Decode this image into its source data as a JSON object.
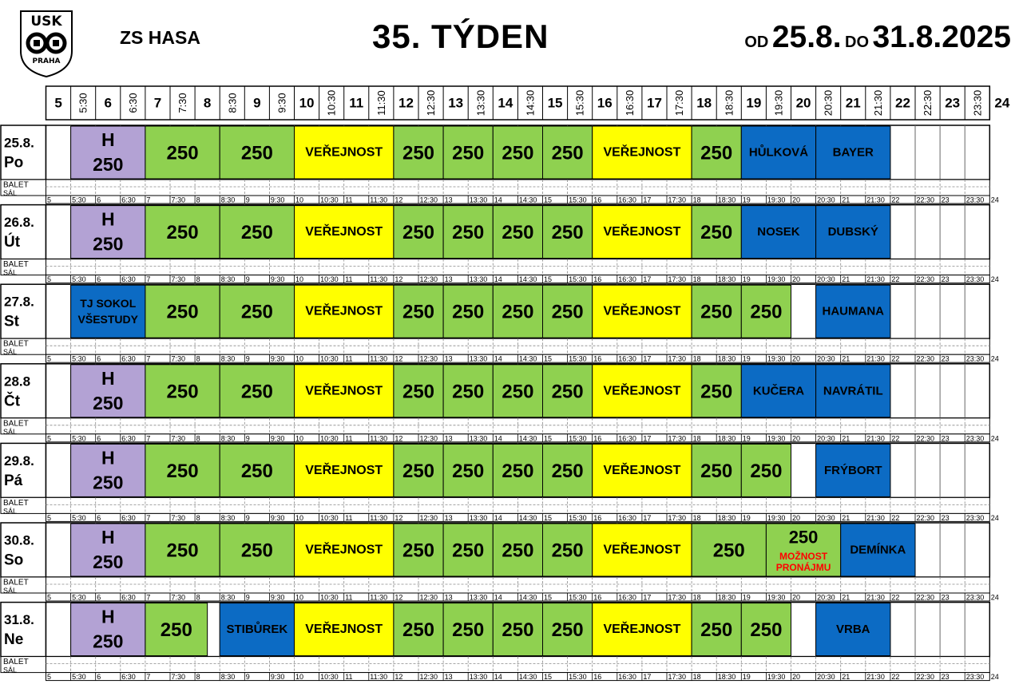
{
  "header": {
    "logo_text_top": "USK",
    "logo_text_bottom": "PRAHA",
    "venue": "ZS HASA",
    "week": "35. TÝDEN",
    "from_label": "OD",
    "from_date": "25.8.",
    "to_label": "DO",
    "to_date": "31.8.2025"
  },
  "hour_labels": [
    "5",
    "5:30",
    "6",
    "6:30",
    "7",
    "7:30",
    "8",
    "8:30",
    "9",
    "9:30",
    "10",
    "10:30",
    "11",
    "11:30",
    "12",
    "12:30",
    "13",
    "13:30",
    "14",
    "14:30",
    "15",
    "15:30",
    "16",
    "16:30",
    "17",
    "17:30",
    "18",
    "18:30",
    "19",
    "19:30",
    "20",
    "20:30",
    "21",
    "21:30",
    "22",
    "22:30",
    "23",
    "23:30",
    "24"
  ],
  "sub_label": [
    "BALET",
    "SÁL"
  ],
  "colors": {
    "purple": "#b3a2d4",
    "green": "#8fd150",
    "yellow": "#ffff00",
    "blue": "#0c6bc4",
    "red": "#ff0000",
    "grid": "#666666"
  },
  "days": [
    {
      "date": "25.8.",
      "dow": "Po",
      "blocks": [
        {
          "start": 1,
          "end": 4,
          "color": "purple",
          "text": "H",
          "text2": "250",
          "style": "h"
        },
        {
          "start": 4,
          "end": 7,
          "color": "green",
          "text": "250",
          "style": "big"
        },
        {
          "start": 7,
          "end": 10,
          "color": "green",
          "text": "250",
          "style": "big"
        },
        {
          "start": 10,
          "end": 14,
          "color": "yellow",
          "text": "VEŘEJNOST",
          "style": "med"
        },
        {
          "start": 14,
          "end": 16,
          "color": "green",
          "text": "250",
          "style": "big"
        },
        {
          "start": 16,
          "end": 18,
          "color": "green",
          "text": "250",
          "style": "big"
        },
        {
          "start": 18,
          "end": 20,
          "color": "green",
          "text": "250",
          "style": "big"
        },
        {
          "start": 20,
          "end": 22,
          "color": "green",
          "text": "250",
          "style": "big"
        },
        {
          "start": 22,
          "end": 26,
          "color": "yellow",
          "text": "VEŘEJNOST",
          "style": "med"
        },
        {
          "start": 26,
          "end": 28,
          "color": "green",
          "text": "250",
          "style": "big"
        },
        {
          "start": 28,
          "end": 31,
          "color": "blue",
          "text": "HŮLKOVÁ",
          "style": "name"
        },
        {
          "start": 31,
          "end": 34,
          "color": "blue",
          "text": "BAYER",
          "style": "name"
        }
      ]
    },
    {
      "date": "26.8.",
      "dow": "Út",
      "blocks": [
        {
          "start": 1,
          "end": 4,
          "color": "purple",
          "text": "H",
          "text2": "250",
          "style": "h"
        },
        {
          "start": 4,
          "end": 7,
          "color": "green",
          "text": "250",
          "style": "big"
        },
        {
          "start": 7,
          "end": 10,
          "color": "green",
          "text": "250",
          "style": "big"
        },
        {
          "start": 10,
          "end": 14,
          "color": "yellow",
          "text": "VEŘEJNOST",
          "style": "med"
        },
        {
          "start": 14,
          "end": 16,
          "color": "green",
          "text": "250",
          "style": "big"
        },
        {
          "start": 16,
          "end": 18,
          "color": "green",
          "text": "250",
          "style": "big"
        },
        {
          "start": 18,
          "end": 20,
          "color": "green",
          "text": "250",
          "style": "big"
        },
        {
          "start": 20,
          "end": 22,
          "color": "green",
          "text": "250",
          "style": "big"
        },
        {
          "start": 22,
          "end": 26,
          "color": "yellow",
          "text": "VEŘEJNOST",
          "style": "med"
        },
        {
          "start": 26,
          "end": 28,
          "color": "green",
          "text": "250",
          "style": "big"
        },
        {
          "start": 28,
          "end": 31,
          "color": "blue",
          "text": "NOSEK",
          "style": "name"
        },
        {
          "start": 31,
          "end": 34,
          "color": "blue",
          "text": "DUBSKÝ",
          "style": "name"
        }
      ]
    },
    {
      "date": "27.8.",
      "dow": "St",
      "blocks": [
        {
          "start": 1,
          "end": 4,
          "color": "blue",
          "text": "TJ SOKOL",
          "text2": "VŠESTUDY",
          "style": "two"
        },
        {
          "start": 4,
          "end": 7,
          "color": "green",
          "text": "250",
          "style": "big"
        },
        {
          "start": 7,
          "end": 10,
          "color": "green",
          "text": "250",
          "style": "big"
        },
        {
          "start": 10,
          "end": 14,
          "color": "yellow",
          "text": "VEŘEJNOST",
          "style": "med"
        },
        {
          "start": 14,
          "end": 16,
          "color": "green",
          "text": "250",
          "style": "big"
        },
        {
          "start": 16,
          "end": 18,
          "color": "green",
          "text": "250",
          "style": "big"
        },
        {
          "start": 18,
          "end": 20,
          "color": "green",
          "text": "250",
          "style": "big"
        },
        {
          "start": 20,
          "end": 22,
          "color": "green",
          "text": "250",
          "style": "big"
        },
        {
          "start": 22,
          "end": 26,
          "color": "yellow",
          "text": "VEŘEJNOST",
          "style": "med"
        },
        {
          "start": 26,
          "end": 28,
          "color": "green",
          "text": "250",
          "style": "big"
        },
        {
          "start": 28,
          "end": 30,
          "color": "green",
          "text": "250",
          "style": "big"
        },
        {
          "start": 31,
          "end": 34,
          "color": "blue",
          "text": "HAUMANA",
          "style": "name"
        }
      ]
    },
    {
      "date": "28.8",
      "dow": "Čt",
      "blocks": [
        {
          "start": 1,
          "end": 4,
          "color": "purple",
          "text": "H",
          "text2": "250",
          "style": "h"
        },
        {
          "start": 4,
          "end": 7,
          "color": "green",
          "text": "250",
          "style": "big"
        },
        {
          "start": 7,
          "end": 10,
          "color": "green",
          "text": "250",
          "style": "big"
        },
        {
          "start": 10,
          "end": 14,
          "color": "yellow",
          "text": "VEŘEJNOST",
          "style": "med"
        },
        {
          "start": 14,
          "end": 16,
          "color": "green",
          "text": "250",
          "style": "big"
        },
        {
          "start": 16,
          "end": 18,
          "color": "green",
          "text": "250",
          "style": "big"
        },
        {
          "start": 18,
          "end": 20,
          "color": "green",
          "text": "250",
          "style": "big"
        },
        {
          "start": 20,
          "end": 22,
          "color": "green",
          "text": "250",
          "style": "big"
        },
        {
          "start": 22,
          "end": 26,
          "color": "yellow",
          "text": "VEŘEJNOST",
          "style": "med"
        },
        {
          "start": 26,
          "end": 28,
          "color": "green",
          "text": "250",
          "style": "big"
        },
        {
          "start": 28,
          "end": 31,
          "color": "blue",
          "text": "KUČERA",
          "style": "name"
        },
        {
          "start": 31,
          "end": 34,
          "color": "blue",
          "text": "NAVRÁTIL",
          "style": "name"
        }
      ]
    },
    {
      "date": "29.8.",
      "dow": "Pá",
      "blocks": [
        {
          "start": 1,
          "end": 4,
          "color": "purple",
          "text": "H",
          "text2": "250",
          "style": "h"
        },
        {
          "start": 4,
          "end": 7,
          "color": "green",
          "text": "250",
          "style": "big"
        },
        {
          "start": 7,
          "end": 10,
          "color": "green",
          "text": "250",
          "style": "big"
        },
        {
          "start": 10,
          "end": 14,
          "color": "yellow",
          "text": "VEŘEJNOST",
          "style": "med"
        },
        {
          "start": 14,
          "end": 16,
          "color": "green",
          "text": "250",
          "style": "big"
        },
        {
          "start": 16,
          "end": 18,
          "color": "green",
          "text": "250",
          "style": "big"
        },
        {
          "start": 18,
          "end": 20,
          "color": "green",
          "text": "250",
          "style": "big"
        },
        {
          "start": 20,
          "end": 22,
          "color": "green",
          "text": "250",
          "style": "big"
        },
        {
          "start": 22,
          "end": 26,
          "color": "yellow",
          "text": "VEŘEJNOST",
          "style": "med"
        },
        {
          "start": 26,
          "end": 28,
          "color": "green",
          "text": "250",
          "style": "big"
        },
        {
          "start": 28,
          "end": 30,
          "color": "green",
          "text": "250",
          "style": "big"
        },
        {
          "start": 31,
          "end": 34,
          "color": "blue",
          "text": "FRÝBORT",
          "style": "name"
        }
      ]
    },
    {
      "date": "30.8.",
      "dow": "So",
      "blocks": [
        {
          "start": 1,
          "end": 4,
          "color": "purple",
          "text": "H",
          "text2": "250",
          "style": "h"
        },
        {
          "start": 4,
          "end": 7,
          "color": "green",
          "text": "250",
          "style": "big"
        },
        {
          "start": 7,
          "end": 10,
          "color": "green",
          "text": "250",
          "style": "big"
        },
        {
          "start": 10,
          "end": 14,
          "color": "yellow",
          "text": "VEŘEJNOST",
          "style": "med"
        },
        {
          "start": 14,
          "end": 16,
          "color": "green",
          "text": "250",
          "style": "big"
        },
        {
          "start": 16,
          "end": 18,
          "color": "green",
          "text": "250",
          "style": "big"
        },
        {
          "start": 18,
          "end": 20,
          "color": "green",
          "text": "250",
          "style": "big"
        },
        {
          "start": 20,
          "end": 22,
          "color": "green",
          "text": "250",
          "style": "big"
        },
        {
          "start": 22,
          "end": 26,
          "color": "yellow",
          "text": "VEŘEJNOST",
          "style": "med"
        },
        {
          "start": 26,
          "end": 29,
          "color": "green",
          "text": "250",
          "style": "big"
        },
        {
          "start": 29,
          "end": 32,
          "color": "green",
          "text": "250",
          "text2": "MOŽNOST",
          "text3": "PRONÁJMU",
          "style": "rent"
        },
        {
          "start": 32,
          "end": 35,
          "color": "blue",
          "text": "DEMÍNKA",
          "style": "name"
        }
      ]
    },
    {
      "date": "31.8.",
      "dow": "Ne",
      "blocks": [
        {
          "start": 1,
          "end": 4,
          "color": "purple",
          "text": "H",
          "text2": "250",
          "style": "h"
        },
        {
          "start": 4,
          "end": 6.5,
          "color": "green",
          "text": "250",
          "style": "big"
        },
        {
          "start": 7,
          "end": 10,
          "color": "blue",
          "text": "STIBŮREK",
          "style": "name"
        },
        {
          "start": 10,
          "end": 14,
          "color": "yellow",
          "text": "VEŘEJNOST",
          "style": "med"
        },
        {
          "start": 14,
          "end": 16,
          "color": "green",
          "text": "250",
          "style": "big"
        },
        {
          "start": 16,
          "end": 18,
          "color": "green",
          "text": "250",
          "style": "big"
        },
        {
          "start": 18,
          "end": 20,
          "color": "green",
          "text": "250",
          "style": "big"
        },
        {
          "start": 20,
          "end": 22,
          "color": "green",
          "text": "250",
          "style": "big"
        },
        {
          "start": 22,
          "end": 26,
          "color": "yellow",
          "text": "VEŘEJNOST",
          "style": "med"
        },
        {
          "start": 26,
          "end": 28,
          "color": "green",
          "text": "250",
          "style": "big"
        },
        {
          "start": 28,
          "end": 30,
          "color": "green",
          "text": "250",
          "style": "big"
        },
        {
          "start": 31,
          "end": 34,
          "color": "blue",
          "text": "VRBA",
          "style": "name"
        }
      ]
    }
  ]
}
